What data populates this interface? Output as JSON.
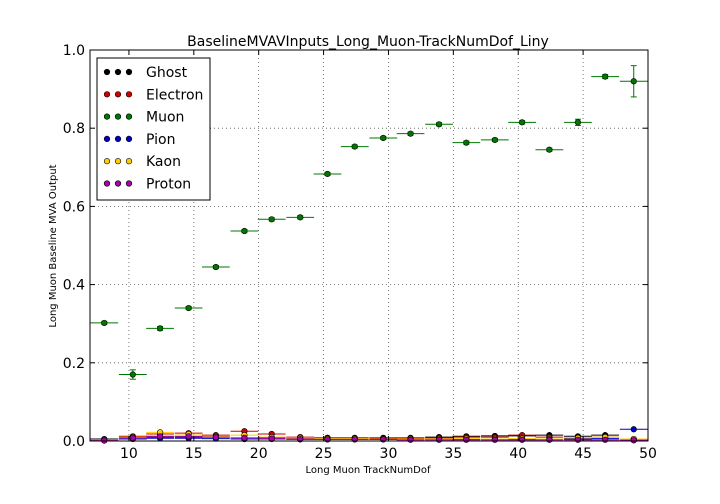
{
  "chart_data": {
    "type": "scatter",
    "title": "BaselineMVAVInputs_Long_Muon-TrackNumDof_Liny",
    "xlabel": "Long Muon TrackNumDof",
    "ylabel": "Long Muon Baseline MVA Output",
    "xlim": [
      7,
      50
    ],
    "ylim": [
      0,
      1.0
    ],
    "xticks": [
      "10",
      "15",
      "20",
      "25",
      "30",
      "35",
      "40",
      "45",
      "50"
    ],
    "yticks": [
      "0.0",
      "0.2",
      "0.4",
      "0.6",
      "0.8",
      "1.0"
    ],
    "grid": true,
    "legend_position": "top-left",
    "x_bin_centers": [
      8.1,
      10.3,
      12.4,
      14.6,
      16.7,
      18.9,
      21.0,
      23.2,
      25.3,
      27.4,
      29.6,
      31.7,
      33.9,
      36.0,
      38.2,
      40.3,
      42.4,
      44.6,
      46.7,
      48.9
    ],
    "x_bin_halfwidth": 1.07,
    "series": [
      {
        "name": "Ghost",
        "color": "#000000",
        "values": [
          0.005,
          0.01,
          0.01,
          0.01,
          0.01,
          0.005,
          0.008,
          0.008,
          0.008,
          0.008,
          0.008,
          0.008,
          0.01,
          0.012,
          0.013,
          0.013,
          0.015,
          0.012,
          0.015,
          0.002
        ]
      },
      {
        "name": "Electron",
        "color": "#cc0000",
        "values": [
          0.003,
          0.012,
          0.018,
          0.02,
          0.015,
          0.025,
          0.018,
          0.01,
          0.008,
          0.007,
          0.007,
          0.007,
          0.008,
          0.01,
          0.01,
          0.015,
          0.01,
          0.008,
          0.01,
          0.005
        ]
      },
      {
        "name": "Muon",
        "color": "#007700",
        "errors": [
          0.004,
          0.012,
          0.005,
          0.004,
          0.004,
          0.004,
          0.004,
          0.004,
          0.004,
          0.004,
          0.004,
          0.004,
          0.004,
          0.004,
          0.004,
          0.004,
          0.004,
          0.008,
          0.005,
          0.04
        ],
        "values": [
          0.302,
          0.17,
          0.288,
          0.34,
          0.445,
          0.537,
          0.567,
          0.572,
          0.683,
          0.753,
          0.775,
          0.786,
          0.81,
          0.763,
          0.77,
          0.815,
          0.745,
          0.815,
          0.932,
          0.92
        ]
      },
      {
        "name": "Pion",
        "color": "#0000cc",
        "values": [
          0.002,
          0.005,
          0.007,
          0.007,
          0.006,
          0.005,
          0.005,
          0.004,
          0.004,
          0.004,
          0.004,
          0.004,
          0.004,
          0.004,
          0.004,
          0.005,
          0.005,
          0.005,
          0.006,
          0.03
        ]
      },
      {
        "name": "Kaon",
        "color": "#ffcc00",
        "values": [
          0.003,
          0.01,
          0.022,
          0.018,
          0.012,
          0.015,
          0.01,
          0.008,
          0.006,
          0.006,
          0.005,
          0.005,
          0.005,
          0.006,
          0.005,
          0.006,
          0.005,
          0.008,
          0.01,
          0.005
        ]
      },
      {
        "name": "Proton",
        "color": "#aa00aa",
        "values": [
          0.001,
          0.008,
          0.012,
          0.012,
          0.01,
          0.008,
          0.006,
          0.005,
          0.004,
          0.004,
          0.004,
          0.003,
          0.003,
          0.003,
          0.003,
          0.003,
          0.003,
          0.003,
          0.003,
          0.002
        ]
      }
    ]
  }
}
